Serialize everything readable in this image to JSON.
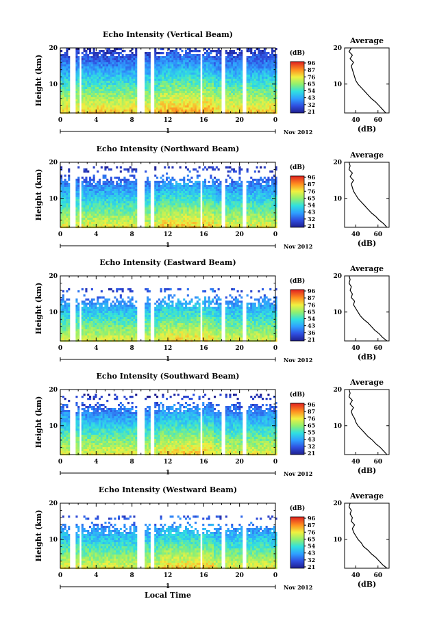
{
  "chart_data": [
    {
      "type": "heatmap",
      "title": "Echo Intensity (Vertical Beam)",
      "ylabel": "Height (km)",
      "ylim": [
        2,
        20
      ],
      "yticks": [
        "10",
        "20"
      ],
      "xlim": [
        0,
        24
      ],
      "xticks": [
        "0",
        "4",
        "8",
        "12",
        "16",
        "20",
        "0"
      ],
      "day_marker": "1",
      "date_label": "Nov 2012",
      "colorbar": {
        "unit": "(dB)",
        "ticks": [
          "96",
          "87",
          "76",
          "65",
          "54",
          "43",
          "32",
          "21"
        ]
      },
      "top_km": 20,
      "offset_db": 0,
      "average": {
        "title": "Average",
        "xlabel": "(dB)",
        "xticks": [
          "40",
          "60"
        ],
        "xlim": [
          30,
          70
        ],
        "profile": [
          [
            2,
            67
          ],
          [
            3,
            64
          ],
          [
            4,
            61
          ],
          [
            5,
            58
          ],
          [
            6,
            54
          ],
          [
            7,
            51
          ],
          [
            8,
            48
          ],
          [
            9,
            45
          ],
          [
            10,
            42
          ],
          [
            11,
            40
          ],
          [
            12,
            39
          ],
          [
            13,
            38
          ],
          [
            14,
            37
          ],
          [
            15,
            36
          ],
          [
            16,
            38
          ],
          [
            17,
            35
          ],
          [
            18,
            37
          ],
          [
            19,
            34
          ],
          [
            20,
            36
          ]
        ]
      }
    },
    {
      "type": "heatmap",
      "title": "Echo Intensity (Northward Beam)",
      "ylabel": "Height (km)",
      "ylim": [
        2,
        20
      ],
      "yticks": [
        "10",
        "20"
      ],
      "xlim": [
        0,
        24
      ],
      "xticks": [
        "0",
        "4",
        "8",
        "12",
        "16",
        "20",
        "0"
      ],
      "day_marker": "1",
      "date_label": "Nov 2012",
      "colorbar": {
        "unit": "(dB)",
        "ticks": [
          "96",
          "87",
          "76",
          "65",
          "54",
          "43",
          "32",
          "21"
        ]
      },
      "top_km": 16,
      "offset_db": -6,
      "average": {
        "title": "Average",
        "xlabel": "(dB)",
        "xticks": [
          "40",
          "60"
        ],
        "xlim": [
          30,
          70
        ],
        "profile": [
          [
            2,
            68
          ],
          [
            3,
            65
          ],
          [
            4,
            61
          ],
          [
            5,
            58
          ],
          [
            6,
            54
          ],
          [
            7,
            51
          ],
          [
            8,
            48
          ],
          [
            9,
            45
          ],
          [
            10,
            42
          ],
          [
            11,
            40
          ],
          [
            12,
            38
          ],
          [
            13,
            37
          ],
          [
            14,
            36
          ],
          [
            15,
            38
          ],
          [
            16,
            35
          ],
          [
            17,
            37
          ],
          [
            18,
            34
          ],
          [
            19,
            35
          ],
          [
            20,
            34
          ]
        ]
      }
    },
    {
      "type": "heatmap",
      "title": "Echo Intensity (Eastward Beam)",
      "ylabel": "Height (km)",
      "ylim": [
        2,
        20
      ],
      "yticks": [
        "10",
        "20"
      ],
      "xlim": [
        0,
        24
      ],
      "xticks": [
        "0",
        "4",
        "8",
        "12",
        "16",
        "20",
        "0"
      ],
      "day_marker": "1",
      "date_label": "Nov 2012",
      "colorbar": {
        "unit": "(dB)",
        "ticks": [
          "96",
          "87",
          "76",
          "65",
          "54",
          "43",
          "36",
          "21"
        ]
      },
      "top_km": 14,
      "offset_db": -8,
      "average": {
        "title": "Average",
        "xlabel": "(dB)",
        "xticks": [
          "40",
          "60"
        ],
        "xlim": [
          30,
          70
        ],
        "profile": [
          [
            2,
            68
          ],
          [
            3,
            64
          ],
          [
            4,
            61
          ],
          [
            5,
            57
          ],
          [
            6,
            54
          ],
          [
            7,
            51
          ],
          [
            8,
            47
          ],
          [
            9,
            44
          ],
          [
            10,
            42
          ],
          [
            11,
            40
          ],
          [
            12,
            38
          ],
          [
            13,
            39
          ],
          [
            14,
            36
          ],
          [
            15,
            37
          ],
          [
            16,
            35
          ],
          [
            17,
            36
          ],
          [
            18,
            34
          ],
          [
            19,
            35
          ],
          [
            20,
            34
          ]
        ]
      }
    },
    {
      "type": "heatmap",
      "title": "Echo Intensity (Southward Beam)",
      "ylabel": "Height (km)",
      "ylim": [
        2,
        20
      ],
      "yticks": [
        "10",
        "20"
      ],
      "xlim": [
        0,
        24
      ],
      "xticks": [
        "0",
        "4",
        "8",
        "12",
        "16",
        "20",
        "0"
      ],
      "day_marker": "1",
      "date_label": "Nov 2012",
      "colorbar": {
        "unit": "(dB)",
        "ticks": [
          "96",
          "87",
          "76",
          "65",
          "55",
          "43",
          "32",
          "21"
        ]
      },
      "top_km": 16,
      "offset_db": -6,
      "average": {
        "title": "Average",
        "xlabel": "(dB)",
        "xticks": [
          "40",
          "60"
        ],
        "xlim": [
          30,
          70
        ],
        "profile": [
          [
            2,
            68
          ],
          [
            3,
            65
          ],
          [
            4,
            62
          ],
          [
            5,
            58
          ],
          [
            6,
            55
          ],
          [
            7,
            51
          ],
          [
            8,
            48
          ],
          [
            9,
            45
          ],
          [
            10,
            42
          ],
          [
            11,
            40
          ],
          [
            12,
            39
          ],
          [
            13,
            37
          ],
          [
            14,
            36
          ],
          [
            15,
            38
          ],
          [
            16,
            35
          ],
          [
            17,
            37
          ],
          [
            18,
            34
          ],
          [
            19,
            35
          ],
          [
            20,
            34
          ]
        ]
      }
    },
    {
      "type": "heatmap",
      "title": "Echo Intensity (Westward Beam)",
      "ylabel": "Height (km)",
      "ylim": [
        2,
        20
      ],
      "yticks": [
        "10",
        "20"
      ],
      "xlim": [
        0,
        24
      ],
      "xticks": [
        "0",
        "4",
        "8",
        "12",
        "16",
        "20",
        "0"
      ],
      "day_marker": "1",
      "date_label": "Nov 2012",
      "xlabel": "Local Time",
      "colorbar": {
        "unit": "(dB)",
        "ticks": [
          "96",
          "87",
          "76",
          "65",
          "54",
          "43",
          "32",
          "21"
        ]
      },
      "top_km": 14,
      "offset_db": -7,
      "average": {
        "title": "Average",
        "xlabel": "(dB)",
        "xticks": [
          "40",
          "60"
        ],
        "xlim": [
          30,
          70
        ],
        "profile": [
          [
            2,
            68
          ],
          [
            3,
            64
          ],
          [
            4,
            61
          ],
          [
            5,
            58
          ],
          [
            6,
            54
          ],
          [
            7,
            51
          ],
          [
            8,
            47
          ],
          [
            9,
            45
          ],
          [
            10,
            42
          ],
          [
            11,
            40
          ],
          [
            12,
            38
          ],
          [
            13,
            37
          ],
          [
            14,
            39
          ],
          [
            15,
            36
          ],
          [
            16,
            37
          ],
          [
            17,
            35
          ],
          [
            18,
            36
          ],
          [
            19,
            34
          ],
          [
            20,
            35
          ]
        ]
      }
    }
  ]
}
